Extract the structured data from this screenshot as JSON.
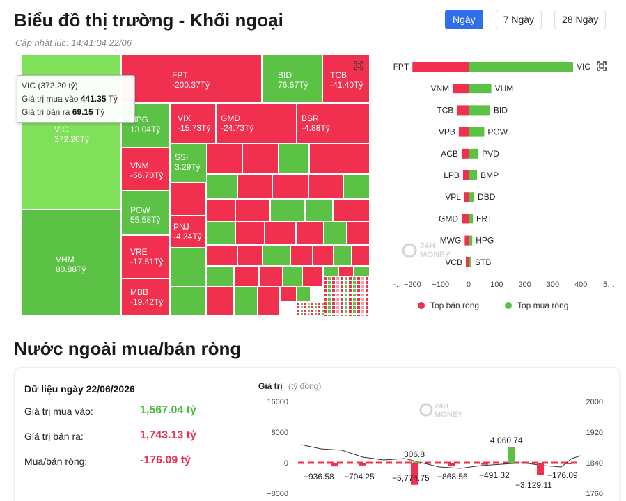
{
  "header": {
    "title": "Biểu đồ thị trường - Khối ngoại",
    "updated": "Cập nhật lúc: 14:41:04 22/06"
  },
  "range_tabs": [
    {
      "label": "Ngày",
      "active": true
    },
    {
      "label": "7 Ngày",
      "active": false
    },
    {
      "label": "28 Ngày",
      "active": false
    }
  ],
  "treemap": {
    "tiles": [
      {
        "ticker": "VIC",
        "value": "372.20Tỷ"
      },
      {
        "ticker": "VHM",
        "value": "80.88Tỷ"
      },
      {
        "ticker": "FPT",
        "value": "-200.37Tỷ"
      },
      {
        "ticker": "BID",
        "value": "76.67Tỷ"
      },
      {
        "ticker": "TCB",
        "value": "-41.40Tỷ"
      },
      {
        "ticker": "HPG",
        "value": "13.04Tỷ"
      },
      {
        "ticker": "VNM",
        "value": "-56.70Tỷ"
      },
      {
        "ticker": "POW",
        "value": "55.58Tỷ"
      },
      {
        "ticker": "VRE",
        "value": "-17.51Tỷ"
      },
      {
        "ticker": "MBB",
        "value": "-19.42Tỷ"
      },
      {
        "ticker": "VIX",
        "value": "-15.73Tỷ"
      },
      {
        "ticker": "GMD",
        "value": "-24.73Tỷ"
      },
      {
        "ticker": "BSR",
        "value": "-4.88Tỷ"
      },
      {
        "ticker": "SSI",
        "value": "3.29Tỷ"
      },
      {
        "ticker": "PNJ",
        "value": "-4.34Tỷ"
      }
    ]
  },
  "tooltip": {
    "head": "VIC (372.20 tỷ)",
    "buy_label": "Giá trị mua vào",
    "buy_value": "441.35",
    "sell_label": "Giá trị bán ra",
    "sell_value": "69.15",
    "unit": "Tỷ"
  },
  "net_chart": {
    "sell_tickers": [
      "FPT",
      "VNM",
      "TCB",
      "VPB",
      "ACB",
      "LPB",
      "VPL",
      "GMD",
      "MWG",
      "VCB"
    ],
    "sell_values": [
      -200.37,
      -56.7,
      -41.4,
      -35,
      -25,
      -20,
      -15,
      -24.73,
      -14,
      -10
    ],
    "buy_tickers": [
      "VIC",
      "VHM",
      "BID",
      "POW",
      "PVD",
      "BMP",
      "DBD",
      "FRT",
      "HPG",
      "STB"
    ],
    "buy_values": [
      372.2,
      80.88,
      76.67,
      55.58,
      35,
      30,
      20,
      15,
      13.04,
      10
    ],
    "x_ticks": [
      "-…",
      "−200",
      "−100",
      "0",
      "100",
      "200",
      "300",
      "400",
      "5…"
    ],
    "legend_sell": "Top bán ròng",
    "legend_buy": "Top mua ròng",
    "sell_color": "#f0304e",
    "buy_color": "#5cc246"
  },
  "section2": {
    "title": "Nước ngoài mua/bán ròng",
    "date": "Dữ liệu ngày 22/06/2026",
    "buy_label": "Giá trị mua vào:",
    "buy_value": "1,567.04 tỷ",
    "sell_label": "Giá trị bán ra:",
    "sell_value": "1,743.13 tỷ",
    "net_label": "Mua/bán ròng:",
    "net_value": "-176.09 tỷ"
  },
  "flow_chart": {
    "ylabel": "Giá trị",
    "ylabel_unit": "(tỷ đồng)",
    "left_ticks": [
      "16000",
      "8000",
      "0",
      "−8000"
    ],
    "right_ticks": [
      "2000",
      "1920",
      "1840",
      "1760"
    ],
    "bar_values": [
      -936.58,
      -704.25,
      -5774.75,
      306.8,
      -868.56,
      -491.32,
      4060.74,
      -3129.11,
      -176.09
    ],
    "bar_labels": [
      "−936.58",
      "−704.25",
      "−5,774.75",
      "306.8",
      "−868.56",
      "−491.32",
      "4,060.74",
      "−3,129.11",
      "−176.09"
    ],
    "watermark_top": "24H",
    "watermark_bottom": "MONEY"
  }
}
